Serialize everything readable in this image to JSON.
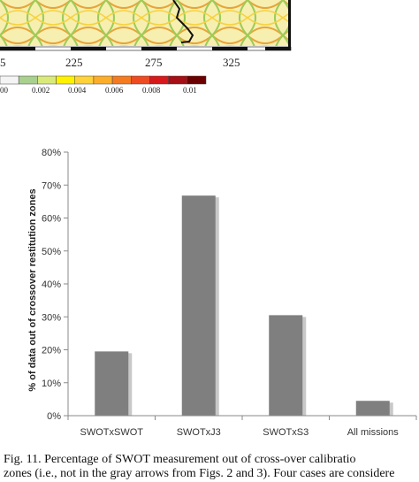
{
  "map_fragment": {
    "x_ticks": [
      "5",
      "225",
      "275",
      "325"
    ],
    "colorbar_ticks": [
      "00",
      "0.002",
      "0.004",
      "0.006",
      "0.008",
      "0.01"
    ],
    "colorbar_colors": [
      "#f4f4f4",
      "#a9d08e",
      "#d9ea7a",
      "#fff200",
      "#ffd23a",
      "#fcae2a",
      "#f57b20",
      "#ee4b22",
      "#d7191c",
      "#a50f15",
      "#6b0000"
    ]
  },
  "chart_data": {
    "type": "bar",
    "categories": [
      "SWOTxSWOT",
      "SWOTxJ3",
      "SWOTxS3",
      "All missions"
    ],
    "values": [
      19.5,
      66.8,
      30.5,
      4.5
    ],
    "ylabel": "% of data out of crossover restitution zones",
    "ylim": [
      0,
      80
    ],
    "yticks": [
      0,
      10,
      20,
      30,
      40,
      50,
      60,
      70,
      80
    ],
    "ytick_labels": [
      "0%",
      "10%",
      "20%",
      "30%",
      "40%",
      "50%",
      "60%",
      "70%",
      "80%"
    ],
    "grid": false,
    "bar_color": "#7f7f7f"
  },
  "caption": {
    "line1": "Fig. 11.   Percentage of SWOT measurement out of cross-over calibratio",
    "line2": "zones (i.e., not in the gray arrows from Figs. 2 and 3). Four cases are considere"
  }
}
